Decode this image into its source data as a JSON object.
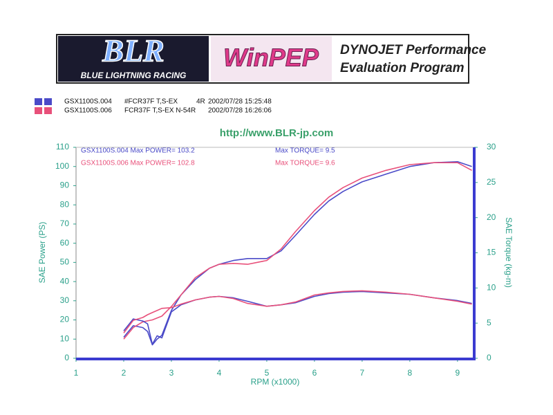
{
  "header": {
    "logo": "BLR",
    "tagline": "BLUE LIGHTNING RACING",
    "product": "WinPEP",
    "line1": "DYNOJET Performance",
    "line2": "Evaluation Program"
  },
  "runs": [
    {
      "file": "GSX1100S.004",
      "desc": "#FCR37F T,S-EX",
      "tag": "4R",
      "date": "2002/07/28 15:25:48",
      "color": "#4a4ac8"
    },
    {
      "file": "GSX1100S.006",
      "desc": "FCR37F T,S-EX N-54R",
      "tag": "",
      "date": "2002/07/28 16:26:06",
      "color": "#e8507a"
    }
  ],
  "url": "http://www.BLR-jp.com",
  "chart_data": {
    "type": "line",
    "x_label": "RPM (x1000)",
    "y_label": "SAE Power (PS)",
    "y2_label": "SAE Torque (kg-m)",
    "annotations": [
      {
        "text": "GSX1100S.004  Max POWER= 103.2",
        "color": "#4a4ac8"
      },
      {
        "text": "Max TORQUE= 9.5",
        "color": "#4a4ac8"
      },
      {
        "text": "GSX1100S.006  Max POWER= 102.8",
        "color": "#e8507a"
      },
      {
        "text": "Max TORQUE= 9.6",
        "color": "#e8507a"
      }
    ],
    "x": [
      2.0,
      2.2,
      2.4,
      2.5,
      2.6,
      2.7,
      2.8,
      3.0,
      3.2,
      3.5,
      3.8,
      4.0,
      4.3,
      4.6,
      5.0,
      5.3,
      5.6,
      6.0,
      6.3,
      6.6,
      7.0,
      7.5,
      8.0,
      8.5,
      9.0,
      9.3
    ],
    "series": [
      {
        "color": "#4a4ac8",
        "axis": "y",
        "values": [
          11,
          17,
          16,
          14,
          7,
          10,
          12,
          25,
          33,
          41,
          47,
          49,
          51,
          52,
          52,
          56,
          64,
          75,
          82,
          87,
          92,
          96,
          100,
          102,
          102.5,
          100
        ]
      },
      {
        "color": "#e8507a",
        "axis": "y",
        "values": [
          10,
          16,
          19,
          19.5,
          20,
          21,
          22,
          27,
          33,
          42,
          47,
          49,
          49.5,
          49,
          51,
          57,
          66,
          77,
          84,
          89,
          94,
          98,
          101,
          102,
          102,
          98
        ]
      },
      {
        "color": "#4a4ac8",
        "axis": "y2",
        "values": [
          3.9,
          5.6,
          5.3,
          4.9,
          2,
          3.2,
          2.9,
          6.6,
          7.6,
          8.3,
          8.7,
          8.8,
          8.6,
          8.1,
          7.4,
          7.6,
          7.9,
          8.8,
          9.2,
          9.4,
          9.5,
          9.3,
          9.1,
          8.6,
          8.2,
          7.8
        ]
      },
      {
        "color": "#e8507a",
        "axis": "y2",
        "values": [
          3.6,
          5.4,
          5.8,
          6.2,
          6.5,
          6.8,
          7.1,
          7.2,
          7.7,
          8.3,
          8.7,
          8.8,
          8.5,
          7.8,
          7.4,
          7.6,
          8.0,
          9.0,
          9.3,
          9.5,
          9.6,
          9.4,
          9.1,
          8.6,
          8.1,
          7.7
        ]
      }
    ],
    "xlim": [
      1,
      9.35
    ],
    "xticks": [
      1,
      2,
      3,
      4,
      5,
      6,
      7,
      8,
      9
    ],
    "ylim": [
      0,
      110
    ],
    "yticks": [
      0,
      10,
      20,
      30,
      40,
      50,
      60,
      70,
      80,
      90,
      100,
      110
    ],
    "y2lim": [
      0,
      30
    ],
    "y2ticks": [
      0,
      5,
      10,
      15,
      20,
      25,
      30
    ]
  }
}
